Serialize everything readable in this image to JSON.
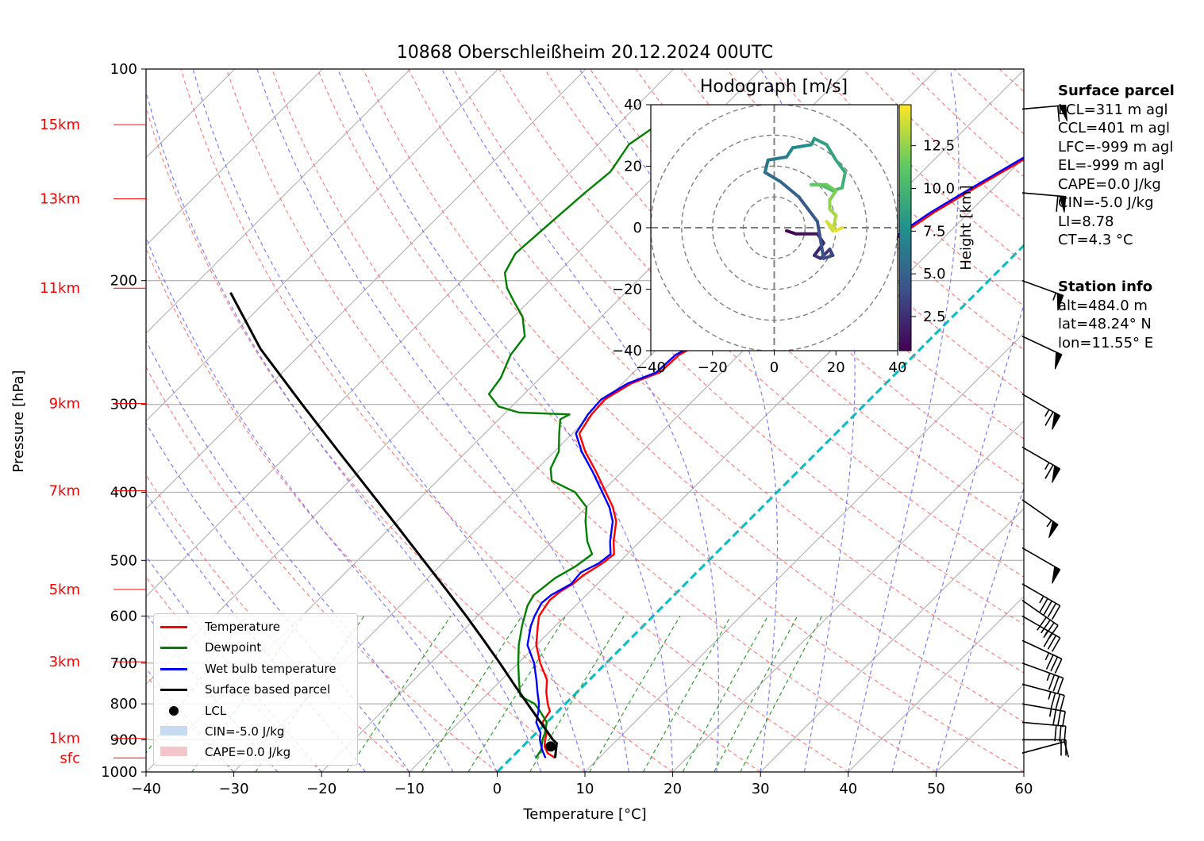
{
  "chart_data": {
    "type": "line",
    "title": "10868 Oberschleißheim 20.12.2024 00UTC",
    "xlabel": "Temperature [°C]",
    "ylabel": "Pressure [hPa]",
    "xlim": [
      -40,
      60
    ],
    "ylim": [
      1000,
      100
    ],
    "x_ticks": [
      "−40",
      "−30",
      "−20",
      "−10",
      "0",
      "10",
      "20",
      "30",
      "40",
      "50",
      "60"
    ],
    "y_ticks": [
      {
        "p": 100,
        "label": "100"
      },
      {
        "p": 200,
        "label": "200"
      },
      {
        "p": 300,
        "label": "300"
      },
      {
        "p": 400,
        "label": "400"
      },
      {
        "p": 500,
        "label": "500"
      },
      {
        "p": 600,
        "label": "600"
      },
      {
        "p": 700,
        "label": "700"
      },
      {
        "p": 800,
        "label": "800"
      },
      {
        "p": 900,
        "label": "900"
      },
      {
        "p": 1000,
        "label": "1000"
      }
    ],
    "height_labels": [
      {
        "p": 120,
        "label": "15km"
      },
      {
        "p": 153,
        "label": "13km"
      },
      {
        "p": 205,
        "label": "11km"
      },
      {
        "p": 299,
        "label": "9km"
      },
      {
        "p": 398,
        "label": "7km"
      },
      {
        "p": 550,
        "label": "5km"
      },
      {
        "p": 697,
        "label": "3km"
      },
      {
        "p": 896,
        "label": "1km"
      },
      {
        "p": 955,
        "label": "sfc"
      }
    ],
    "series": [
      {
        "name": "Temperature",
        "color": "#ff0000",
        "points": [
          [
            955,
            5.0
          ],
          [
            940,
            3.6
          ],
          [
            920,
            2.5
          ],
          [
            900,
            1.8
          ],
          [
            880,
            1.2
          ],
          [
            850,
            -0.5
          ],
          [
            820,
            -0.9
          ],
          [
            800,
            -2.0
          ],
          [
            770,
            -3.5
          ],
          [
            740,
            -4.8
          ],
          [
            700,
            -7.5
          ],
          [
            660,
            -10.0
          ],
          [
            620,
            -12.0
          ],
          [
            600,
            -13.0
          ],
          [
            570,
            -13.6
          ],
          [
            555,
            -13.4
          ],
          [
            540,
            -12.8
          ],
          [
            525,
            -12.6
          ],
          [
            505,
            -11.8
          ],
          [
            490,
            -11.5
          ],
          [
            470,
            -13.0
          ],
          [
            440,
            -15.0
          ],
          [
            420,
            -17.0
          ],
          [
            400,
            -19.5
          ],
          [
            375,
            -22.8
          ],
          [
            350,
            -26.5
          ],
          [
            330,
            -29.2
          ],
          [
            310,
            -30.0
          ],
          [
            295,
            -30.2
          ],
          [
            280,
            -29.0
          ],
          [
            270,
            -27.0
          ],
          [
            255,
            -26.8
          ],
          [
            240,
            -25.0
          ],
          [
            225,
            -24.0
          ],
          [
            210,
            -21.5
          ],
          [
            198,
            -20.0
          ],
          [
            190,
            -17.0
          ],
          [
            180,
            -15.8
          ],
          [
            170,
            -15.0
          ],
          [
            160,
            -14.0
          ],
          [
            150,
            -12.5
          ],
          [
            140,
            -10.8
          ],
          [
            133,
            -9.5
          ],
          [
            126,
            -6.0
          ],
          [
            122,
            -3.5
          ],
          [
            118,
            -3.5
          ],
          [
            114,
            -4.2
          ]
        ]
      },
      {
        "name": "Dewpoint",
        "color": "#008000",
        "points": [
          [
            955,
            2.8
          ],
          [
            930,
            2.5
          ],
          [
            900,
            1.5
          ],
          [
            880,
            1.0
          ],
          [
            850,
            0.0
          ],
          [
            820,
            -2.0
          ],
          [
            800,
            -3.5
          ],
          [
            780,
            -6.0
          ],
          [
            740,
            -8.0
          ],
          [
            700,
            -10.0
          ],
          [
            660,
            -12.0
          ],
          [
            620,
            -13.8
          ],
          [
            580,
            -15.5
          ],
          [
            560,
            -16.0
          ],
          [
            530,
            -15.5
          ],
          [
            510,
            -14.5
          ],
          [
            490,
            -14.0
          ],
          [
            470,
            -16.0
          ],
          [
            440,
            -18.5
          ],
          [
            420,
            -20.0
          ],
          [
            400,
            -23.0
          ],
          [
            385,
            -27.0
          ],
          [
            370,
            -28.5
          ],
          [
            350,
            -29.5
          ],
          [
            330,
            -31.5
          ],
          [
            315,
            -33.0
          ],
          [
            310,
            -32.5
          ],
          [
            308,
            -38.5
          ],
          [
            302,
            -41.5
          ],
          [
            290,
            -44.0
          ],
          [
            275,
            -44.5
          ],
          [
            255,
            -46.0
          ],
          [
            240,
            -46.5
          ],
          [
            225,
            -49.0
          ],
          [
            215,
            -51.5
          ],
          [
            205,
            -54.0
          ],
          [
            195,
            -56.0
          ],
          [
            183,
            -57.0
          ],
          [
            165,
            -56.5
          ],
          [
            150,
            -56.0
          ],
          [
            140,
            -55.5
          ],
          [
            128,
            -56.5
          ],
          [
            120,
            -55.5
          ]
        ]
      },
      {
        "name": "Wet bulb temperature",
        "color": "#0000ff",
        "points": [
          [
            955,
            3.9
          ],
          [
            930,
            2.6
          ],
          [
            900,
            1.2
          ],
          [
            880,
            0.5
          ],
          [
            850,
            -1.2
          ],
          [
            820,
            -2.2
          ],
          [
            800,
            -3.0
          ],
          [
            770,
            -4.5
          ],
          [
            740,
            -6.0
          ],
          [
            700,
            -8.2
          ],
          [
            660,
            -11.0
          ],
          [
            620,
            -12.8
          ],
          [
            600,
            -13.5
          ],
          [
            575,
            -14.2
          ],
          [
            560,
            -14.0
          ],
          [
            540,
            -13.0
          ],
          [
            520,
            -13.2
          ],
          [
            505,
            -12.2
          ],
          [
            490,
            -11.9
          ],
          [
            470,
            -13.4
          ],
          [
            440,
            -15.4
          ],
          [
            420,
            -17.4
          ],
          [
            400,
            -19.9
          ],
          [
            375,
            -23.2
          ],
          [
            350,
            -26.9
          ],
          [
            330,
            -29.6
          ],
          [
            310,
            -30.4
          ],
          [
            295,
            -30.6
          ],
          [
            280,
            -29.4
          ],
          [
            270,
            -27.4
          ],
          [
            255,
            -27.2
          ],
          [
            240,
            -25.4
          ],
          [
            225,
            -24.4
          ],
          [
            210,
            -21.9
          ],
          [
            198,
            -20.4
          ],
          [
            190,
            -17.4
          ],
          [
            180,
            -16.2
          ],
          [
            170,
            -15.4
          ],
          [
            160,
            -14.4
          ],
          [
            150,
            -12.9
          ],
          [
            140,
            -11.2
          ],
          [
            133,
            -9.9
          ],
          [
            126,
            -6.4
          ],
          [
            122,
            -3.9
          ],
          [
            118,
            -3.9
          ],
          [
            114,
            -4.6
          ]
        ]
      },
      {
        "name": "Surface based parcel",
        "color": "#000000",
        "points": [
          [
            955,
            5.0
          ],
          [
            910,
            3.5
          ],
          [
            900,
            2.7
          ],
          [
            850,
            -0.7
          ],
          [
            800,
            -4.3
          ],
          [
            750,
            -8.1
          ],
          [
            700,
            -12.1
          ],
          [
            650,
            -16.5
          ],
          [
            600,
            -21.3
          ],
          [
            550,
            -26.6
          ],
          [
            500,
            -32.5
          ],
          [
            450,
            -39.0
          ],
          [
            400,
            -46.3
          ],
          [
            350,
            -54.6
          ],
          [
            300,
            -64.1
          ],
          [
            250,
            -75.2
          ],
          [
            208,
            -85.0
          ]
        ]
      }
    ],
    "lcl": {
      "name": "LCL",
      "p": 920,
      "t": 3.2
    },
    "cin_label": "CIN=-5.0 J/kg",
    "cape_label": "CAPE=0.0 J/kg",
    "wind_barbs": [
      {
        "p": 114,
        "dir": 265,
        "spd_kt": 62
      },
      {
        "p": 150,
        "dir": 275,
        "spd_kt": 58
      },
      {
        "p": 200,
        "dir": 290,
        "spd_kt": 55
      },
      {
        "p": 240,
        "dir": 295,
        "spd_kt": 50
      },
      {
        "p": 290,
        "dir": 300,
        "spd_kt": 65
      },
      {
        "p": 345,
        "dir": 300,
        "spd_kt": 65
      },
      {
        "p": 410,
        "dir": 305,
        "spd_kt": 55
      },
      {
        "p": 480,
        "dir": 300,
        "spd_kt": 50
      },
      {
        "p": 540,
        "dir": 300,
        "spd_kt": 45
      },
      {
        "p": 570,
        "dir": 305,
        "spd_kt": 40
      },
      {
        "p": 600,
        "dir": 300,
        "spd_kt": 35
      },
      {
        "p": 650,
        "dir": 295,
        "spd_kt": 35
      },
      {
        "p": 700,
        "dir": 290,
        "spd_kt": 35
      },
      {
        "p": 750,
        "dir": 285,
        "spd_kt": 35
      },
      {
        "p": 800,
        "dir": 280,
        "spd_kt": 35
      },
      {
        "p": 850,
        "dir": 275,
        "spd_kt": 30
      },
      {
        "p": 900,
        "dir": 270,
        "spd_kt": 20
      },
      {
        "p": 940,
        "dir": 255,
        "spd_kt": 8
      }
    ],
    "hodograph": {
      "title": "Hodograph [m/s]",
      "xlim": [
        -40,
        40
      ],
      "ylim": [
        -40,
        40
      ],
      "ticks": [
        "−40",
        "−20",
        "0",
        "20",
        "40"
      ],
      "colorbar_label": "Height [km]",
      "colorbar_ticks": [
        "2.5",
        "5.0",
        "7.5",
        "10.0",
        "12.5"
      ],
      "colorbar_range": [
        0.5,
        14.9
      ],
      "trace": [
        [
          4,
          -1,
          0.5
        ],
        [
          7,
          -2,
          0.9
        ],
        [
          10,
          -2,
          1.3
        ],
        [
          14,
          -2,
          1.7
        ],
        [
          16,
          -5,
          2.1
        ],
        [
          13,
          -9,
          2.5
        ],
        [
          15,
          -10,
          2.9
        ],
        [
          18,
          -7,
          3.3
        ],
        [
          19,
          -9,
          3.7
        ],
        [
          16,
          -10,
          4.1
        ],
        [
          14,
          2,
          4.5
        ],
        [
          8,
          10,
          5.0
        ],
        [
          2,
          15,
          5.5
        ],
        [
          -3,
          18,
          6.0
        ],
        [
          -2,
          22,
          6.5
        ],
        [
          4,
          23,
          7.0
        ],
        [
          6,
          26,
          7.5
        ],
        [
          12,
          27,
          8.0
        ],
        [
          13,
          29,
          8.4
        ],
        [
          17,
          27,
          8.8
        ],
        [
          20,
          22,
          9.2
        ],
        [
          23,
          18,
          9.6
        ],
        [
          22,
          13,
          10.0
        ],
        [
          19,
          12,
          10.4
        ],
        [
          15,
          14,
          10.8
        ],
        [
          12,
          14,
          11.2
        ],
        [
          17,
          14,
          11.6
        ],
        [
          20,
          12,
          12.0
        ],
        [
          18,
          9,
          12.4
        ],
        [
          18,
          6,
          12.8
        ],
        [
          20,
          4,
          13.2
        ],
        [
          19,
          -1,
          13.6
        ],
        [
          17,
          2,
          14.0
        ],
        [
          20,
          -1,
          14.4
        ],
        [
          22,
          0,
          14.8
        ]
      ]
    }
  },
  "info": {
    "parcel_header": "Surface parcel",
    "parcel_lines": [
      "LCL=311 m agl",
      "CCL=401 m agl",
      "LFC=-999 m agl",
      "EL=-999 m agl",
      "CAPE=0.0 J/kg",
      "CIN=-5.0 J/kg",
      "LI=8.78",
      "CT=4.3 °C"
    ],
    "station_header": "Station info",
    "station_lines": [
      "alt=484.0 m",
      "lat=48.24° N",
      "lon=11.55° E"
    ]
  },
  "legend": {
    "temperature": "Temperature",
    "dewpoint": "Dewpoint",
    "wetbulb": "Wet bulb temperature",
    "parcel": "Surface based parcel",
    "lcl": "LCL",
    "cin": "CIN=-5.0 J/kg",
    "cape": "CAPE=0.0 J/kg"
  },
  "colors": {
    "temperature": "#ff0000",
    "dewpoint": "#008000",
    "wetbulb": "#0000ff",
    "parcel": "#000000",
    "dry_adiabat": "#ff6666",
    "moist_adiabat": "#6666ff",
    "mixing_ratio": "#2ca02c",
    "isotherm_zero": "#00c0c0",
    "height_labels": "#ff0000"
  }
}
